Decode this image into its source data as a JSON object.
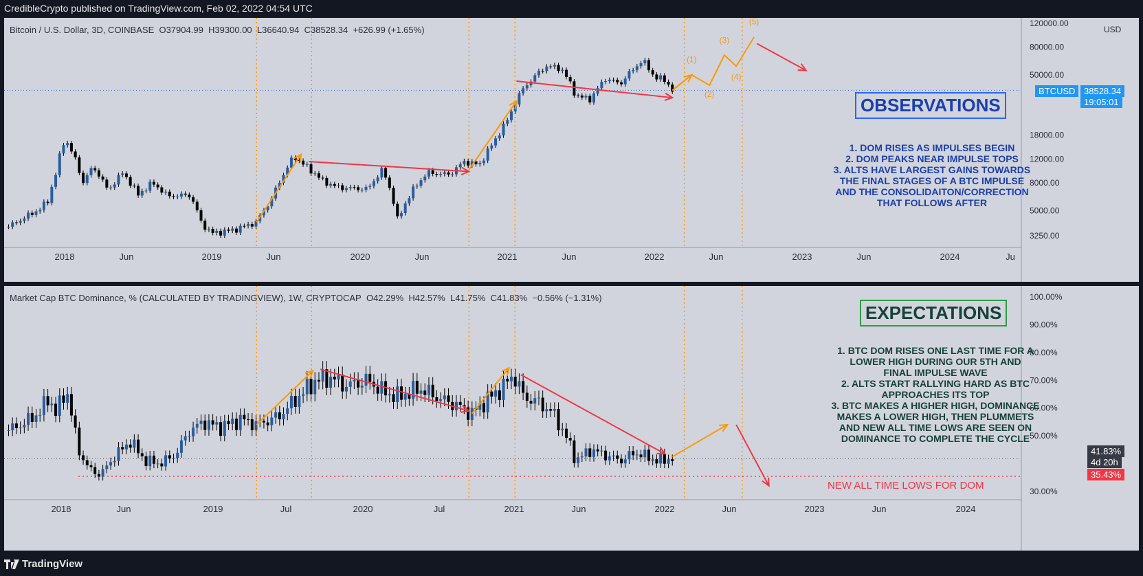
{
  "header": {
    "publisher": "CredibleCrypto published on TradingView.com, Feb 02, 2022 04:54 UTC"
  },
  "footer": {
    "logo_text": "TradingView"
  },
  "colors": {
    "background": "#131722",
    "pane": "#d1d4dc",
    "up": "#26a69a",
    "impulse": "#ff9800",
    "trend": "#f23645",
    "blue": "#2962ff",
    "green": "#2e9c44"
  },
  "chart_data": [
    {
      "type": "candlestick",
      "title": "Bitcoin / U.S. Dollar, 3D, COINBASE",
      "ohlc": {
        "o": "O37904.99",
        "h": "H39300.00",
        "l": "L36640.94",
        "c": "C38528.34",
        "chg": "+626.99 (+1.65%)"
      },
      "y_scale": "log",
      "ylim": [
        2800,
        120000
      ],
      "y_ticks": [
        "120000.00",
        "80000.00",
        "50000.00",
        "18000.00",
        "12000.00",
        "8000.00",
        "5000.00",
        "3250.00"
      ],
      "y_unit": "USD",
      "x_ticks": [
        "2018",
        "Jun",
        "2019",
        "Jun",
        "2020",
        "Jun",
        "2021",
        "Jun",
        "2022",
        "Jun",
        "2023",
        "Jun",
        "2024",
        "Ju"
      ],
      "price_label": {
        "symbol": "BTCUSD",
        "value": "38528.34",
        "countdown": "19:05:01"
      },
      "path": [
        [
          2017.58,
          3800
        ],
        [
          2017.7,
          4500
        ],
        [
          2017.8,
          5200
        ],
        [
          2017.85,
          6000
        ],
        [
          2017.9,
          9500
        ],
        [
          2017.96,
          17000
        ],
        [
          2018.0,
          14000
        ],
        [
          2018.08,
          8000
        ],
        [
          2018.15,
          10500
        ],
        [
          2018.25,
          7000
        ],
        [
          2018.35,
          9500
        ],
        [
          2018.45,
          6500
        ],
        [
          2018.55,
          8000
        ],
        [
          2018.65,
          6400
        ],
        [
          2018.8,
          6500
        ],
        [
          2018.88,
          4000
        ],
        [
          2018.95,
          3400
        ],
        [
          2019.1,
          3600
        ],
        [
          2019.25,
          4100
        ],
        [
          2019.35,
          6000
        ],
        [
          2019.45,
          10000
        ],
        [
          2019.5,
          12500
        ],
        [
          2019.6,
          10200
        ],
        [
          2019.7,
          8200
        ],
        [
          2019.8,
          7400
        ],
        [
          2019.9,
          7300
        ],
        [
          2020.0,
          7200
        ],
        [
          2020.1,
          10000
        ],
        [
          2020.2,
          4200
        ],
        [
          2020.3,
          7000
        ],
        [
          2020.4,
          9500
        ],
        [
          2020.55,
          9200
        ],
        [
          2020.65,
          11500
        ],
        [
          2020.75,
          10800
        ],
        [
          2020.85,
          16000
        ],
        [
          2020.95,
          24000
        ],
        [
          2021.0,
          33000
        ],
        [
          2021.05,
          40000
        ],
        [
          2021.2,
          58000
        ],
        [
          2021.3,
          56000
        ],
        [
          2021.4,
          35000
        ],
        [
          2021.5,
          33000
        ],
        [
          2021.6,
          47000
        ],
        [
          2021.7,
          43000
        ],
        [
          2021.85,
          64000
        ],
        [
          2021.93,
          48000
        ],
        [
          2022.0,
          46000
        ],
        [
          2022.05,
          38500
        ]
      ],
      "projection": [
        [
          2022.05,
          38500
        ],
        [
          2022.18,
          50000
        ],
        [
          2022.3,
          42000
        ],
        [
          2022.4,
          70000
        ],
        [
          2022.48,
          58000
        ],
        [
          2022.6,
          95000
        ]
      ],
      "wave_labels": [
        {
          "label": "(1)",
          "x": 2022.18,
          "y": 62000
        },
        {
          "label": "(2)",
          "x": 2022.3,
          "y": 34500
        },
        {
          "label": "(3)",
          "x": 2022.4,
          "y": 86000
        },
        {
          "label": "(4)",
          "x": 2022.48,
          "y": 46000
        },
        {
          "label": "(5)",
          "x": 2022.6,
          "y": 118000
        }
      ],
      "impulse_arrows": [
        [
          [
            2019.25,
            4100
          ],
          [
            2019.55,
            13000
          ]
        ],
        [
          [
            2020.68,
            10000
          ],
          [
            2021.0,
            32000
          ]
        ],
        [
          [
            2022.05,
            38500
          ],
          [
            2022.18,
            50000
          ]
        ]
      ],
      "trend_arrows": [
        [
          [
            2019.6,
            11500
          ],
          [
            2020.68,
            9700
          ]
        ],
        [
          [
            2021.0,
            45000
          ],
          [
            2022.05,
            34000
          ]
        ],
        [
          [
            2022.62,
            85000
          ],
          [
            2022.95,
            54000
          ]
        ]
      ],
      "vlines": [
        2019.25,
        2019.62,
        2020.68,
        2020.99,
        2022.13,
        2022.52
      ],
      "annotation_title": "OBSERVATIONS",
      "annotation_notes": "1. DOM RISES AS IMPULSES BEGIN\n2. DOM PEAKS NEAR IMPULSE TOPS\n3. ALTS HAVE LARGEST GAINS TOWARDS\nTHE FINAL STAGES OF A BTC IMPULSE\nAND THE CONSOLIDAITON/CORRECTION\nTHAT FOLLOWS AFTER"
    },
    {
      "type": "candlestick",
      "title": "Market Cap BTC Dominance, % (CALCULATED BY TRADINGVIEW), 1W, CRYPTOCAP",
      "ohlc": {
        "o": "O42.29%",
        "h": "H42.57%",
        "l": "L41.75%",
        "c": "C41.83%",
        "chg": "−0.56% (−1.31%)"
      },
      "y_scale": "linear",
      "ylim": [
        26,
        104
      ],
      "y_ticks": [
        "100.00%",
        "90.00%",
        "80.00%",
        "70.00%",
        "60.00%",
        "50.00%",
        "30.00%"
      ],
      "x_ticks": [
        "2018",
        "Jun",
        "2019",
        "Jul",
        "2020",
        "Jul",
        "2021",
        "Jun",
        "2022",
        "Jun",
        "2023",
        "Jun",
        "2024"
      ],
      "price_label": {
        "value": "41.83%",
        "countdown": "4d 20h"
      },
      "low_label": "35.43%",
      "low_level": 35.43,
      "path": [
        [
          2017.58,
          52
        ],
        [
          2017.7,
          55
        ],
        [
          2017.8,
          59
        ],
        [
          2017.85,
          64
        ],
        [
          2017.9,
          58
        ],
        [
          2017.97,
          67
        ],
        [
          2018.05,
          45
        ],
        [
          2018.12,
          38
        ],
        [
          2018.2,
          36
        ],
        [
          2018.3,
          43
        ],
        [
          2018.4,
          48
        ],
        [
          2018.5,
          41
        ],
        [
          2018.6,
          40
        ],
        [
          2018.7,
          43
        ],
        [
          2018.8,
          52
        ],
        [
          2018.9,
          55
        ],
        [
          2019.0,
          53
        ],
        [
          2019.15,
          56
        ],
        [
          2019.25,
          54
        ],
        [
          2019.4,
          57
        ],
        [
          2019.55,
          65
        ],
        [
          2019.65,
          70
        ],
        [
          2019.75,
          71
        ],
        [
          2019.85,
          68
        ],
        [
          2020.0,
          70
        ],
        [
          2020.1,
          66
        ],
        [
          2020.2,
          64
        ],
        [
          2020.35,
          67
        ],
        [
          2020.5,
          63
        ],
        [
          2020.6,
          61
        ],
        [
          2020.7,
          58
        ],
        [
          2020.8,
          63
        ],
        [
          2020.9,
          67
        ],
        [
          2020.98,
          72
        ],
        [
          2021.05,
          64
        ],
        [
          2021.15,
          62
        ],
        [
          2021.25,
          58
        ],
        [
          2021.35,
          48
        ],
        [
          2021.4,
          41
        ],
        [
          2021.5,
          45
        ],
        [
          2021.6,
          43
        ],
        [
          2021.7,
          41
        ],
        [
          2021.8,
          44
        ],
        [
          2021.95,
          41
        ],
        [
          2022.05,
          41.8
        ]
      ],
      "projection": [
        [
          2022.05,
          41.8
        ],
        [
          2022.5,
          54
        ]
      ],
      "impulse_arrows": [
        [
          [
            2019.25,
            54
          ],
          [
            2019.63,
            73.5
          ]
        ],
        [
          [
            2020.7,
            58
          ],
          [
            2020.95,
            74.5
          ]
        ],
        [
          [
            2022.05,
            42.5
          ],
          [
            2022.42,
            54
          ]
        ]
      ],
      "trend_arrows": [
        [
          [
            2019.68,
            74
          ],
          [
            2020.68,
            59
          ]
        ],
        [
          [
            2021.03,
            72
          ],
          [
            2022.0,
            43.5
          ]
        ],
        [
          [
            2022.48,
            54
          ],
          [
            2022.7,
            32
          ]
        ]
      ],
      "vlines": [
        2019.25,
        2019.62,
        2020.68,
        2020.99,
        2022.13,
        2022.52
      ],
      "annotation_title": "EXPECTATIONS",
      "annotation_notes": "1. BTC DOM RISES ONE LAST TIME FOR A\nLOWER HIGH DURING OUR 5TH AND\nFINAL IMPULSE WAVE\n2. ALTS START RALLYING HARD AS BTC\nAPPROACHES ITS TOP\n3. BTC MAKES A HIGHER HIGH, DOMINANCE\nMAKES A LOWER HIGH, THEN PLUMMETS\nAND NEW ALL TIME LOWS ARE SEEN ON\nDOMINANCE TO COMPLETE THE CYCLE",
      "callout": "NEW ALL TIME LOWS FOR DOM"
    }
  ]
}
